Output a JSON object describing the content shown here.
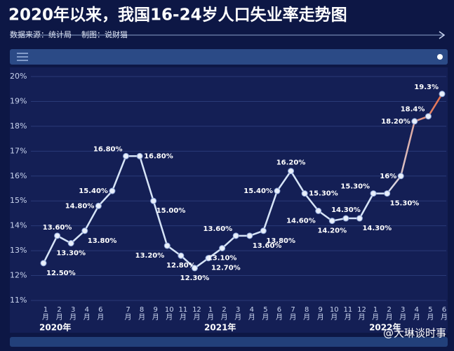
{
  "chart_data": {
    "type": "line",
    "title": "2020年以来，我国16-24岁人口失业率走势图",
    "subtitle": "数据来源：统计局    制图：说财猫",
    "watermark": "@大琳谈时事",
    "categories": [
      "1月",
      "2月",
      "3月",
      "4月",
      "6月",
      null,
      "7月",
      "8月",
      "9月",
      "10月",
      "11月",
      "12月",
      "1月",
      "2月",
      "3月",
      "4月",
      "5月",
      "6月",
      "7月",
      "8月",
      "9月",
      "10月",
      "11月",
      "12月",
      "1月",
      "2月",
      "3月",
      "4月",
      "5月",
      "6月"
    ],
    "year_labels": [
      "2020年",
      "2021年",
      "2022年"
    ],
    "series": [
      {
        "color": "#d6e4f7",
        "values": [
          12.5,
          13.6,
          13.3,
          13.8,
          14.8,
          15.4,
          16.8,
          16.8,
          15.0,
          13.2,
          12.8,
          12.3,
          12.7,
          13.1,
          13.6,
          13.6,
          13.8,
          15.4,
          16.2,
          15.3,
          14.6,
          14.2,
          14.3,
          14.3,
          15.3,
          15.3,
          16,
          18.2,
          18.4,
          19.3
        ],
        "value_labels": [
          "12.50%",
          "13.60%",
          "13.30%",
          "13.80%",
          "14.80%",
          "15.40%",
          "16.80%",
          "16.80%",
          "15.00%",
          "13.20%",
          "12.80%",
          "12.30%",
          "12.70%",
          "13.10%",
          "13.60%",
          "13.60%",
          "13.80%",
          "15.40%",
          "16.20%",
          "15.30%",
          "14.60%",
          "14.20%",
          "14.30%",
          "14.30%",
          "15.30%",
          "15.30%",
          "16%",
          "18.20%",
          "18.4%",
          "19.3%"
        ]
      }
    ],
    "ylim": [
      11,
      20
    ],
    "yticks": [
      {
        "value": 11,
        "label": "11%"
      },
      {
        "value": 12,
        "label": "12%"
      },
      {
        "value": 13,
        "label": "13%"
      },
      {
        "value": 14,
        "label": "14%"
      },
      {
        "value": 15,
        "label": "15%"
      },
      {
        "value": 16,
        "label": "16%"
      },
      {
        "value": 17,
        "label": "17%"
      },
      {
        "value": 18,
        "label": "18%"
      },
      {
        "value": 19,
        "label": "19%"
      },
      {
        "value": 20,
        "label": "20%"
      }
    ],
    "grid": true
  }
}
